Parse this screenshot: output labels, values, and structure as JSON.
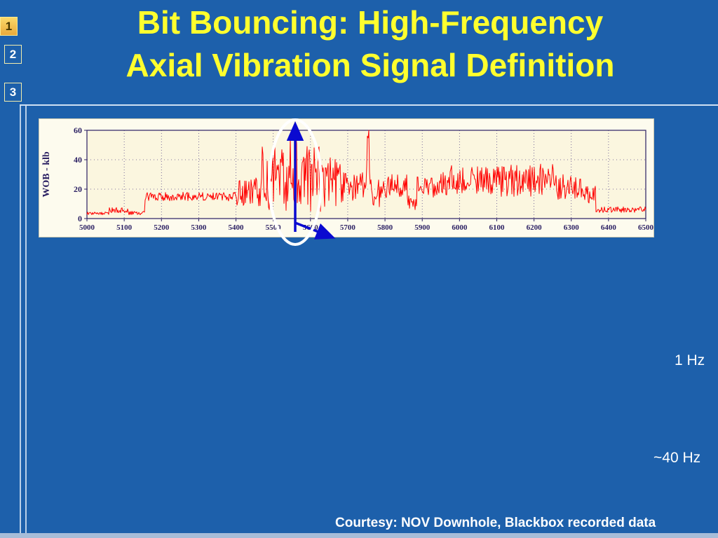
{
  "slide": {
    "title_line1": "Bit Bouncing: High-Frequency",
    "title_line2": "Axial Vibration Signal Definition",
    "footer": "Courtesy: NOV Downhole, Blackbox recorded data",
    "labels": {
      "freq1": "1 Hz",
      "freq2": "~40 Hz"
    }
  },
  "sidebar": {
    "items": [
      {
        "label": "1",
        "active": true
      },
      {
        "label": "2",
        "active": false
      },
      {
        "label": "3",
        "active": false
      }
    ]
  },
  "colors": {
    "bg": "#1d60ab",
    "title": "#ffff2e",
    "line": "#cfe0f2",
    "chart_card": "#fdfbee",
    "chart_plot": "#fbf6df",
    "chart_text": "#2a1f62",
    "grid": "#5a4a8a",
    "signal": "#ff0000",
    "annotation": "#0a0ad0",
    "ellipse": "#ffffff"
  },
  "chart_data": {
    "type": "line",
    "title": "",
    "xlabel": "",
    "ylabel": "WOB - klb",
    "xlim": [
      5000,
      6500
    ],
    "ylim": [
      0,
      60
    ],
    "x_ticks": [
      5000,
      5100,
      5200,
      5300,
      5400,
      5500,
      5600,
      5700,
      5800,
      5900,
      6000,
      6100,
      6200,
      6300,
      6400,
      6500
    ],
    "y_ticks": [
      0,
      20,
      40,
      60
    ],
    "grid": "dotted",
    "legend": "none",
    "series": [
      {
        "name": "WOB",
        "color": "#ff0000",
        "envelope": [
          {
            "x0": 5000,
            "x1": 5060,
            "lo": 2.5,
            "hi": 4.5
          },
          {
            "x0": 5060,
            "x1": 5110,
            "lo": 4.0,
            "hi": 7.5
          },
          {
            "x0": 5110,
            "x1": 5155,
            "lo": 2.5,
            "hi": 5.0
          },
          {
            "x0": 5155,
            "x1": 5400,
            "lo": 12.0,
            "hi": 18.0
          },
          {
            "x0": 5400,
            "x1": 5465,
            "lo": 8.0,
            "hi": 28.0
          },
          {
            "x0": 5465,
            "x1": 5635,
            "lo": 3.0,
            "hi": 52.0
          },
          {
            "x0": 5635,
            "x1": 5700,
            "lo": 8.0,
            "hi": 42.0
          },
          {
            "x0": 5700,
            "x1": 5750,
            "lo": 12.0,
            "hi": 32.0
          },
          {
            "x0": 5750,
            "x1": 5762,
            "lo": 15.0,
            "hi": 58.0
          },
          {
            "x0": 5762,
            "x1": 5790,
            "lo": 8.0,
            "hi": 28.0
          },
          {
            "x0": 5790,
            "x1": 5860,
            "lo": 14.0,
            "hi": 30.0
          },
          {
            "x0": 5860,
            "x1": 5885,
            "lo": 6.0,
            "hi": 16.0
          },
          {
            "x0": 5885,
            "x1": 5950,
            "lo": 14.0,
            "hi": 30.0
          },
          {
            "x0": 5950,
            "x1": 6100,
            "lo": 16.0,
            "hi": 36.0
          },
          {
            "x0": 6100,
            "x1": 6260,
            "lo": 15.0,
            "hi": 37.0
          },
          {
            "x0": 6260,
            "x1": 6330,
            "lo": 13.0,
            "hi": 30.0
          },
          {
            "x0": 6330,
            "x1": 6365,
            "lo": 10.0,
            "hi": 22.0
          },
          {
            "x0": 6365,
            "x1": 6501,
            "lo": 4.0,
            "hi": 8.0
          }
        ],
        "spikes": [
          {
            "x": 5545,
            "y": 55
          },
          {
            "x": 5560,
            "y": 57
          },
          {
            "x": 5757,
            "y": 60
          }
        ]
      }
    ],
    "annotations": [
      {
        "type": "ellipse-highlight",
        "x_center": 5560,
        "color": "#ffffff"
      },
      {
        "type": "vertical-arrow",
        "x": 5560,
        "color": "#0a0ad0"
      },
      {
        "type": "diagonal-arrow",
        "direction": "down-right",
        "color": "#0a0ad0"
      }
    ]
  }
}
